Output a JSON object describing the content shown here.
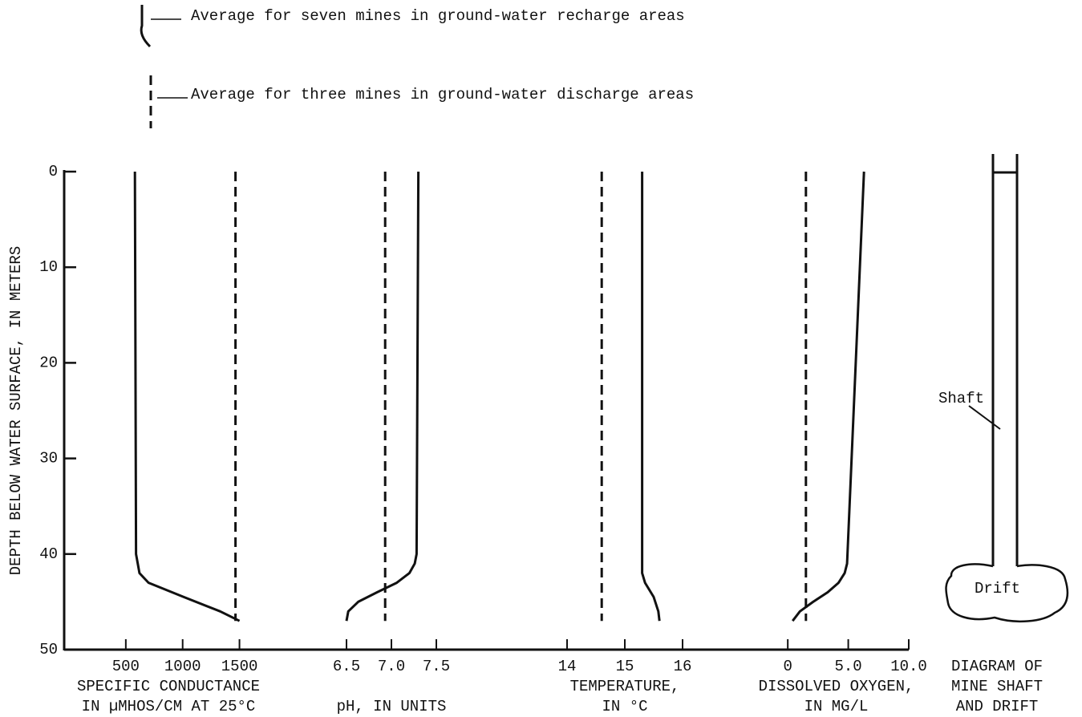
{
  "legend": [
    {
      "label": "Average for seven mines in ground-water recharge areas",
      "style": "solid"
    },
    {
      "label": "Average for three mines in ground-water discharge areas",
      "style": "dashed"
    }
  ],
  "depth_axis": {
    "label": "DEPTH BELOW WATER SURFACE, IN METERS",
    "ylim": [
      0,
      50
    ],
    "yticks": [
      0,
      10,
      20,
      30,
      40,
      50
    ]
  },
  "chart_data": [
    {
      "type": "line",
      "xlabel": [
        "SPECIFIC CONDUCTANCE",
        "IN µMHOS/CM AT 25°C"
      ],
      "xlim": [
        0,
        1750
      ],
      "xticks": [
        500,
        1000,
        1500
      ],
      "series": [
        {
          "style": "solid",
          "color": "#111111",
          "depth": [
            0,
            40,
            42,
            43,
            44.5,
            46,
            47
          ],
          "values": [
            580,
            590,
            620,
            700,
            1010,
            1330,
            1500
          ]
        },
        {
          "style": "dashed",
          "color": "#111111",
          "depth": [
            0,
            47
          ],
          "values": [
            1465,
            1465
          ]
        }
      ]
    },
    {
      "type": "line",
      "xlabel": [
        "pH, IN UNITS"
      ],
      "xlim": [
        6,
        8
      ],
      "xticks": [
        6.5,
        {
          "value": 7,
          "label": "7.0"
        },
        7.5
      ],
      "series": [
        {
          "style": "solid",
          "color": "#111111",
          "depth": [
            0,
            40,
            41,
            42,
            43,
            44,
            45,
            46,
            47
          ],
          "values": [
            7.3,
            7.28,
            7.26,
            7.2,
            7.06,
            6.84,
            6.63,
            6.52,
            6.5
          ]
        },
        {
          "style": "dashed",
          "color": "#111111",
          "depth": [
            0,
            47
          ],
          "values": [
            6.93,
            6.93
          ]
        }
      ]
    },
    {
      "type": "line",
      "xlabel": [
        "TEMPERATURE,",
        "IN °C"
      ],
      "xlim": [
        13,
        17
      ],
      "xticks": [
        14,
        15,
        16
      ],
      "series": [
        {
          "style": "solid",
          "color": "#111111",
          "depth": [
            0,
            42,
            43,
            44.5,
            46,
            47
          ],
          "values": [
            15.3,
            15.3,
            15.35,
            15.5,
            15.58,
            15.6
          ]
        },
        {
          "style": "dashed",
          "color": "#111111",
          "depth": [
            0,
            47
          ],
          "values": [
            14.6,
            14.6
          ]
        }
      ]
    },
    {
      "type": "line",
      "xlabel": [
        "DISSOLVED OXYGEN,",
        "IN MG/L"
      ],
      "xlim": [
        -2,
        10
      ],
      "xticks": [
        0,
        {
          "value": 5,
          "label": "5.0"
        },
        {
          "value": 10,
          "label": "10.0"
        }
      ],
      "series": [
        {
          "style": "solid",
          "color": "#111111",
          "depth": [
            0,
            41,
            42,
            43,
            44,
            45,
            46,
            47
          ],
          "values": [
            6.3,
            4.9,
            4.7,
            4.2,
            3.3,
            2.1,
            1.0,
            0.4
          ]
        },
        {
          "style": "dashed",
          "color": "#111111",
          "depth": [
            0,
            47
          ],
          "values": [
            1.5,
            1.5
          ]
        }
      ]
    }
  ],
  "diagram": {
    "shaft": "Shaft",
    "drift": "Drift",
    "caption": [
      "DIAGRAM OF",
      "MINE SHAFT",
      "AND DRIFT"
    ]
  }
}
